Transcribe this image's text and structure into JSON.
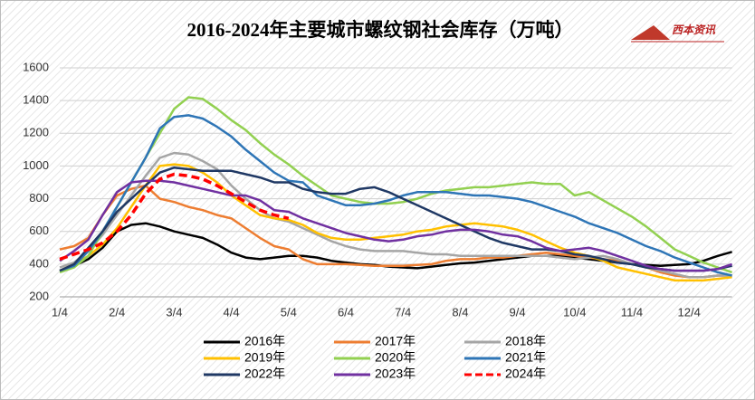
{
  "chart_data": {
    "type": "line",
    "title": "2016-2024年主要城市螺纹钢社会库存（万吨）",
    "logo": "西本资讯",
    "categories": [
      "1/4",
      null,
      null,
      null,
      "2/4",
      null,
      null,
      null,
      "3/4",
      null,
      null,
      null,
      "4/4",
      null,
      null,
      null,
      "5/4",
      null,
      null,
      null,
      "6/4",
      null,
      null,
      null,
      "7/4",
      null,
      null,
      null,
      "8/4",
      null,
      null,
      null,
      "9/4",
      null,
      null,
      null,
      "10/4",
      null,
      null,
      null,
      "11/4",
      null,
      null,
      null,
      "12/4",
      null,
      null,
      null
    ],
    "ylim": [
      200,
      1600
    ],
    "yticks": [
      200,
      400,
      600,
      800,
      1000,
      1200,
      1400,
      1600
    ],
    "grid": true,
    "series": [
      {
        "name": "2016年",
        "color": "#000000",
        "values": [
          360,
          390,
          430,
          500,
          600,
          640,
          650,
          630,
          600,
          580,
          560,
          520,
          470,
          440,
          430,
          440,
          450,
          450,
          440,
          420,
          410,
          400,
          395,
          385,
          380,
          375,
          385,
          395,
          405,
          410,
          420,
          430,
          440,
          450,
          450,
          450,
          440,
          430,
          420,
          410,
          400,
          395,
          390,
          395,
          400,
          420,
          450,
          475
        ]
      },
      {
        "name": "2017年",
        "color": "#ed7d31",
        "values": [
          490,
          510,
          560,
          700,
          820,
          860,
          880,
          800,
          780,
          750,
          730,
          700,
          680,
          620,
          560,
          510,
          490,
          430,
          400,
          400,
          400,
          395,
          390,
          390,
          390,
          395,
          400,
          420,
          430,
          430,
          440,
          440,
          450,
          460,
          470,
          460,
          450,
          440,
          430,
          420,
          400,
          380,
          350,
          330,
          320,
          320,
          330,
          330
        ]
      },
      {
        "name": "2018年",
        "color": "#a5a5a5",
        "values": [
          380,
          410,
          480,
          580,
          700,
          820,
          940,
          1050,
          1080,
          1070,
          1030,
          980,
          880,
          800,
          730,
          680,
          660,
          620,
          580,
          540,
          510,
          490,
          480,
          480,
          480,
          470,
          460,
          460,
          450,
          450,
          450,
          450,
          450,
          450,
          450,
          440,
          430,
          440,
          450,
          430,
          400,
          380,
          360,
          340,
          320,
          320,
          330,
          330
        ]
      },
      {
        "name": "2019年",
        "color": "#ffc000",
        "values": [
          360,
          400,
          450,
          520,
          620,
          750,
          880,
          1000,
          1010,
          1000,
          960,
          900,
          820,
          760,
          700,
          680,
          670,
          640,
          590,
          560,
          550,
          550,
          560,
          570,
          580,
          600,
          610,
          630,
          640,
          650,
          640,
          630,
          610,
          580,
          540,
          500,
          470,
          450,
          420,
          380,
          360,
          340,
          320,
          300,
          300,
          300,
          310,
          320
        ]
      },
      {
        "name": "2020年",
        "color": "#92d050",
        "values": [
          350,
          380,
          450,
          600,
          750,
          900,
          1050,
          1200,
          1350,
          1420,
          1410,
          1350,
          1280,
          1220,
          1140,
          1070,
          1010,
          940,
          880,
          820,
          800,
          780,
          770,
          770,
          780,
          800,
          830,
          850,
          860,
          870,
          870,
          880,
          890,
          900,
          890,
          890,
          820,
          840,
          790,
          740,
          690,
          630,
          560,
          490,
          450,
          410,
          380,
          350
        ]
      },
      {
        "name": "2021年",
        "color": "#2e75b6",
        "values": [
          360,
          390,
          480,
          600,
          750,
          900,
          1050,
          1230,
          1300,
          1310,
          1290,
          1240,
          1180,
          1100,
          1030,
          960,
          910,
          900,
          820,
          790,
          760,
          760,
          770,
          790,
          820,
          840,
          840,
          840,
          830,
          820,
          820,
          810,
          800,
          780,
          750,
          720,
          690,
          650,
          620,
          590,
          550,
          510,
          480,
          440,
          410,
          380,
          350,
          330
        ]
      },
      {
        "name": "2022年",
        "color": "#1f3864",
        "values": [
          360,
          400,
          500,
          600,
          720,
          800,
          880,
          960,
          990,
          980,
          970,
          970,
          970,
          950,
          930,
          900,
          900,
          860,
          840,
          830,
          830,
          860,
          870,
          840,
          800,
          760,
          720,
          680,
          640,
          600,
          560,
          530,
          510,
          490,
          490,
          480,
          460,
          450,
          430,
          410,
          400,
          380,
          370,
          360,
          360,
          360,
          370,
          390
        ]
      },
      {
        "name": "2023年",
        "color": "#7030a0",
        "values": [
          420,
          480,
          550,
          700,
          840,
          900,
          910,
          910,
          900,
          880,
          860,
          840,
          820,
          820,
          790,
          730,
          720,
          680,
          650,
          620,
          590,
          570,
          550,
          540,
          550,
          570,
          580,
          600,
          610,
          610,
          600,
          580,
          570,
          540,
          500,
          480,
          490,
          500,
          480,
          450,
          420,
          390,
          370,
          360,
          360,
          360,
          370,
          400
        ]
      },
      {
        "name": "2024年",
        "color": "#ff0000",
        "dashed": true,
        "values": [
          430,
          460,
          490,
          530,
          600,
          700,
          830,
          920,
          950,
          940,
          920,
          880,
          830,
          780,
          730,
          700,
          680,
          null,
          null,
          null,
          null,
          null,
          null,
          null,
          null,
          null,
          null,
          null,
          null,
          null,
          null,
          null,
          null,
          null,
          null,
          null,
          null,
          null,
          null,
          null,
          null,
          null,
          null,
          null,
          null,
          null,
          null,
          null
        ]
      }
    ]
  }
}
